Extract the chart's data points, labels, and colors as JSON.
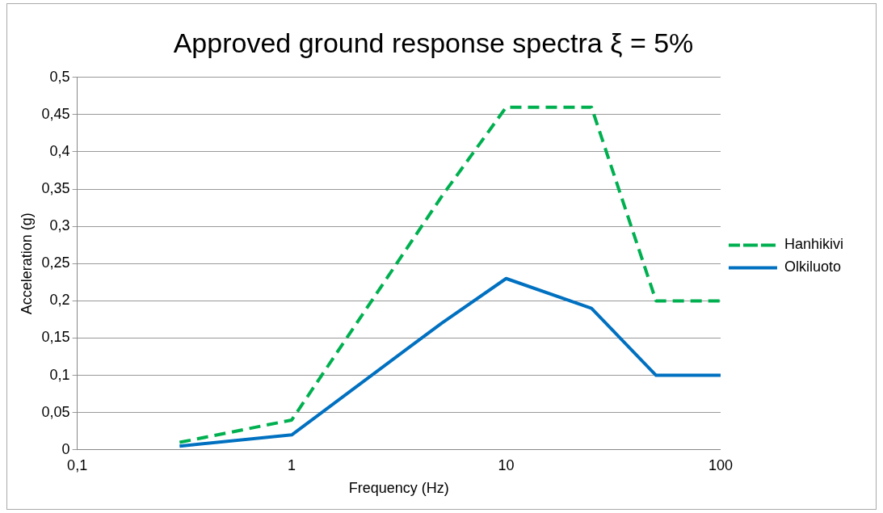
{
  "chart_data": {
    "type": "line",
    "title": "Approved ground response spectra ξ = 5%",
    "xlabel": "Frequency (Hz)",
    "ylabel": "Acceleration (g)",
    "log": "x",
    "grid": "y",
    "legend": "right",
    "marker": "none",
    "xlim": [
      0.1,
      100
    ],
    "xticks": [
      {
        "value": 0.1,
        "label": "0,1"
      },
      1,
      10,
      100
    ],
    "ylim": [
      0,
      0.5
    ],
    "yticks": [
      0,
      {
        "value": 0.05,
        "label": "0,05"
      },
      {
        "value": 0.1,
        "label": "0,1"
      },
      {
        "value": 0.15,
        "label": "0,15"
      },
      {
        "value": 0.2,
        "label": "0,2"
      },
      {
        "value": 0.25,
        "label": "0,25"
      },
      {
        "value": 0.3,
        "label": "0,3"
      },
      {
        "value": 0.35,
        "label": "0,35"
      },
      {
        "value": 0.4,
        "label": "0,4"
      },
      {
        "value": 0.45,
        "label": "0,45"
      },
      {
        "value": 0.5,
        "label": "0,5"
      }
    ],
    "series": [
      {
        "name": "Hanhikivi",
        "color": "#00b050",
        "line_style": "dashed",
        "x": [
          0.3,
          1,
          5,
          10,
          25,
          50,
          100
        ],
        "values": [
          0.01,
          0.04,
          0.34,
          0.46,
          0.46,
          0.2,
          0.2
        ]
      },
      {
        "name": "Olkiluoto",
        "color": "#0070c0",
        "line_style": "solid",
        "x": [
          0.3,
          1,
          5,
          10,
          25,
          50,
          100
        ],
        "values": [
          0.005,
          0.02,
          0.17,
          0.23,
          0.19,
          0.1,
          0.1
        ]
      }
    ]
  }
}
